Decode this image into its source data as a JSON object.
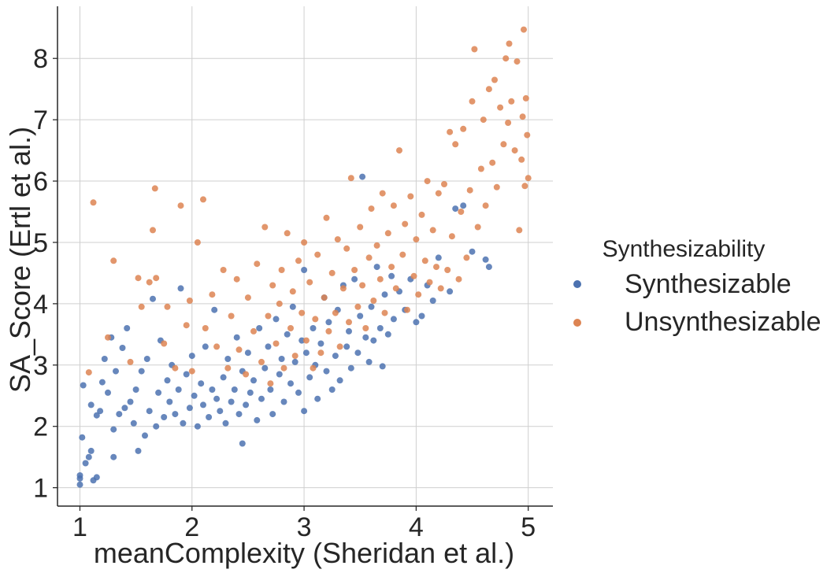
{
  "chart_data": {
    "type": "scatter",
    "xlabel": "meanComplexity (Sheridan et al.)",
    "ylabel": "SA_Score (Ertl et al.)",
    "xlim": [
      0.8,
      5.22
    ],
    "ylim": [
      0.7,
      8.85
    ],
    "xticks": [
      "1",
      "2",
      "3",
      "4",
      "5"
    ],
    "yticks": [
      "1",
      "2",
      "3",
      "4",
      "5",
      "6",
      "7",
      "8"
    ],
    "grid": true,
    "legend": {
      "title": "Synthesizability",
      "placement": "right-outside"
    },
    "series": [
      {
        "name": "Synthesizable",
        "color": "#4c72b0",
        "points": [
          [
            1.0,
            1.05
          ],
          [
            1.0,
            1.15
          ],
          [
            1.0,
            1.2
          ],
          [
            1.02,
            1.82
          ],
          [
            1.03,
            2.67
          ],
          [
            1.05,
            1.4
          ],
          [
            1.08,
            1.5
          ],
          [
            1.1,
            1.6
          ],
          [
            1.1,
            2.35
          ],
          [
            1.12,
            1.12
          ],
          [
            1.15,
            1.17
          ],
          [
            1.15,
            2.18
          ],
          [
            1.18,
            2.25
          ],
          [
            1.2,
            2.72
          ],
          [
            1.22,
            3.1
          ],
          [
            1.25,
            2.55
          ],
          [
            1.28,
            3.45
          ],
          [
            1.3,
            1.5
          ],
          [
            1.3,
            1.95
          ],
          [
            1.32,
            2.9
          ],
          [
            1.35,
            2.2
          ],
          [
            1.38,
            3.28
          ],
          [
            1.4,
            2.3
          ],
          [
            1.42,
            3.6
          ],
          [
            1.45,
            2.4
          ],
          [
            1.48,
            2.05
          ],
          [
            1.5,
            2.6
          ],
          [
            1.52,
            1.6
          ],
          [
            1.55,
            2.9
          ],
          [
            1.58,
            1.85
          ],
          [
            1.6,
            3.1
          ],
          [
            1.62,
            2.25
          ],
          [
            1.65,
            4.08
          ],
          [
            1.68,
            2.0
          ],
          [
            1.7,
            2.55
          ],
          [
            1.72,
            3.4
          ],
          [
            1.75,
            2.15
          ],
          [
            1.78,
            2.75
          ],
          [
            1.8,
            2.4
          ],
          [
            1.82,
            3.0
          ],
          [
            1.85,
            2.2
          ],
          [
            1.88,
            2.6
          ],
          [
            1.9,
            4.25
          ],
          [
            1.92,
            2.05
          ],
          [
            1.95,
            2.85
          ],
          [
            1.98,
            2.3
          ],
          [
            2.0,
            3.15
          ],
          [
            2.02,
            2.5
          ],
          [
            2.05,
            2.0
          ],
          [
            2.08,
            2.7
          ],
          [
            2.1,
            2.35
          ],
          [
            2.12,
            3.3
          ],
          [
            2.15,
            2.15
          ],
          [
            2.18,
            2.6
          ],
          [
            2.2,
            3.9
          ],
          [
            2.22,
            2.45
          ],
          [
            2.25,
            2.25
          ],
          [
            2.28,
            2.8
          ],
          [
            2.3,
            2.05
          ],
          [
            2.32,
            3.1
          ],
          [
            2.35,
            2.4
          ],
          [
            2.38,
            2.6
          ],
          [
            2.4,
            3.45
          ],
          [
            2.42,
            2.2
          ],
          [
            2.45,
            1.72
          ],
          [
            2.45,
            2.9
          ],
          [
            2.48,
            2.35
          ],
          [
            2.5,
            3.2
          ],
          [
            2.52,
            2.55
          ],
          [
            2.55,
            2.75
          ],
          [
            2.58,
            2.1
          ],
          [
            2.6,
            3.6
          ],
          [
            2.62,
            2.45
          ],
          [
            2.65,
            2.95
          ],
          [
            2.68,
            3.3
          ],
          [
            2.7,
            2.6
          ],
          [
            2.72,
            2.2
          ],
          [
            2.75,
            3.75
          ],
          [
            2.78,
            2.85
          ],
          [
            2.8,
            3.1
          ],
          [
            2.82,
            2.4
          ],
          [
            2.85,
            3.5
          ],
          [
            2.88,
            2.7
          ],
          [
            2.9,
            3.95
          ],
          [
            2.92,
            3.05
          ],
          [
            2.95,
            2.55
          ],
          [
            2.98,
            3.4
          ],
          [
            3.0,
            4.55
          ],
          [
            3.0,
            2.25
          ],
          [
            3.02,
            3.2
          ],
          [
            3.05,
            2.8
          ],
          [
            3.08,
            3.6
          ],
          [
            3.1,
            3.0
          ],
          [
            3.12,
            2.45
          ],
          [
            3.15,
            3.35
          ],
          [
            3.18,
            4.1
          ],
          [
            3.2,
            2.9
          ],
          [
            3.22,
            3.7
          ],
          [
            3.25,
            2.6
          ],
          [
            3.28,
            3.15
          ],
          [
            3.3,
            3.9
          ],
          [
            3.32,
            2.75
          ],
          [
            3.35,
            4.3
          ],
          [
            3.38,
            3.3
          ],
          [
            3.4,
            3.55
          ],
          [
            3.42,
            2.95
          ],
          [
            3.45,
            4.4
          ],
          [
            3.48,
            3.2
          ],
          [
            3.5,
            3.8
          ],
          [
            3.52,
            6.07
          ],
          [
            3.55,
            3.45
          ],
          [
            3.58,
            3.05
          ],
          [
            3.6,
            3.95
          ],
          [
            3.62,
            3.4
          ],
          [
            3.65,
            4.6
          ],
          [
            3.68,
            3.6
          ],
          [
            3.7,
            2.98
          ],
          [
            3.72,
            4.15
          ],
          [
            3.75,
            3.5
          ],
          [
            3.78,
            4.45
          ],
          [
            3.8,
            3.75
          ],
          [
            3.85,
            4.2
          ],
          [
            3.9,
            3.9
          ],
          [
            3.95,
            4.4
          ],
          [
            4.0,
            3.7
          ],
          [
            4.05,
            3.8
          ],
          [
            4.1,
            4.3
          ],
          [
            4.15,
            4.05
          ],
          [
            4.2,
            4.75
          ],
          [
            4.3,
            4.2
          ],
          [
            4.35,
            5.55
          ],
          [
            4.42,
            5.6
          ],
          [
            4.5,
            4.85
          ],
          [
            4.62,
            4.72
          ],
          [
            4.65,
            4.6
          ]
        ]
      },
      {
        "name": "Unsynthesizable",
        "color": "#dd8452",
        "points": [
          [
            1.08,
            2.88
          ],
          [
            1.12,
            5.65
          ],
          [
            1.25,
            3.45
          ],
          [
            1.3,
            4.7
          ],
          [
            1.45,
            3.05
          ],
          [
            1.52,
            4.42
          ],
          [
            1.55,
            3.95
          ],
          [
            1.62,
            4.35
          ],
          [
            1.65,
            5.2
          ],
          [
            1.67,
            5.88
          ],
          [
            1.68,
            4.42
          ],
          [
            1.75,
            3.35
          ],
          [
            1.78,
            3.95
          ],
          [
            1.85,
            2.95
          ],
          [
            1.9,
            5.6
          ],
          [
            1.95,
            3.65
          ],
          [
            1.98,
            4.05
          ],
          [
            2.0,
            2.9
          ],
          [
            2.05,
            5.0
          ],
          [
            2.1,
            5.7
          ],
          [
            2.12,
            3.6
          ],
          [
            2.18,
            4.15
          ],
          [
            2.22,
            3.3
          ],
          [
            2.28,
            4.55
          ],
          [
            2.32,
            2.95
          ],
          [
            2.35,
            3.8
          ],
          [
            2.4,
            4.4
          ],
          [
            2.42,
            3.25
          ],
          [
            2.48,
            2.85
          ],
          [
            2.5,
            4.1
          ],
          [
            2.55,
            3.55
          ],
          [
            2.58,
            4.65
          ],
          [
            2.62,
            3.05
          ],
          [
            2.65,
            5.25
          ],
          [
            2.68,
            3.8
          ],
          [
            2.7,
            2.7
          ],
          [
            2.72,
            4.3
          ],
          [
            2.75,
            3.35
          ],
          [
            2.78,
            4.0
          ],
          [
            2.8,
            4.55
          ],
          [
            2.82,
            2.95
          ],
          [
            2.85,
            5.15
          ],
          [
            2.88,
            3.6
          ],
          [
            2.9,
            4.2
          ],
          [
            2.92,
            3.15
          ],
          [
            2.95,
            4.7
          ],
          [
            2.98,
            3.85
          ],
          [
            3.0,
            5.0
          ],
          [
            3.02,
            3.4
          ],
          [
            3.05,
            4.35
          ],
          [
            3.08,
            2.95
          ],
          [
            3.1,
            3.75
          ],
          [
            3.12,
            4.8
          ],
          [
            3.15,
            3.2
          ],
          [
            3.18,
            4.1
          ],
          [
            3.2,
            5.4
          ],
          [
            3.22,
            3.55
          ],
          [
            3.25,
            4.5
          ],
          [
            3.28,
            3.85
          ],
          [
            3.3,
            5.05
          ],
          [
            3.32,
            3.3
          ],
          [
            3.35,
            4.25
          ],
          [
            3.38,
            4.9
          ],
          [
            3.4,
            3.7
          ],
          [
            3.42,
            6.05
          ],
          [
            3.45,
            4.55
          ],
          [
            3.48,
            3.95
          ],
          [
            3.5,
            5.25
          ],
          [
            3.52,
            4.3
          ],
          [
            3.55,
            3.6
          ],
          [
            3.58,
            4.75
          ],
          [
            3.6,
            5.55
          ],
          [
            3.62,
            4.05
          ],
          [
            3.65,
            4.95
          ],
          [
            3.68,
            4.4
          ],
          [
            3.7,
            5.8
          ],
          [
            3.72,
            3.85
          ],
          [
            3.75,
            5.15
          ],
          [
            3.78,
            4.6
          ],
          [
            3.8,
            5.6
          ],
          [
            3.82,
            4.25
          ],
          [
            3.85,
            6.5
          ],
          [
            3.88,
            4.8
          ],
          [
            3.9,
            5.3
          ],
          [
            3.92,
            3.9
          ],
          [
            3.95,
            5.75
          ],
          [
            3.98,
            4.45
          ],
          [
            4.0,
            5.05
          ],
          [
            4.02,
            4.15
          ],
          [
            4.05,
            5.45
          ],
          [
            4.08,
            4.7
          ],
          [
            4.1,
            6.0
          ],
          [
            4.12,
            4.35
          ],
          [
            4.15,
            5.2
          ],
          [
            4.18,
            4.6
          ],
          [
            4.2,
            5.8
          ],
          [
            4.22,
            4.25
          ],
          [
            4.25,
            5.95
          ],
          [
            4.28,
            4.55
          ],
          [
            4.3,
            6.8
          ],
          [
            4.32,
            5.1
          ],
          [
            4.35,
            6.6
          ],
          [
            4.38,
            4.4
          ],
          [
            4.4,
            5.5
          ],
          [
            4.42,
            6.85
          ],
          [
            4.45,
            4.75
          ],
          [
            4.48,
            5.85
          ],
          [
            4.5,
            7.3
          ],
          [
            4.52,
            8.15
          ],
          [
            4.55,
            5.25
          ],
          [
            4.58,
            6.2
          ],
          [
            4.6,
            7.0
          ],
          [
            4.62,
            5.6
          ],
          [
            4.65,
            7.5
          ],
          [
            4.68,
            6.3
          ],
          [
            4.7,
            7.65
          ],
          [
            4.72,
            5.9
          ],
          [
            4.75,
            7.2
          ],
          [
            4.78,
            6.6
          ],
          [
            4.8,
            8.0
          ],
          [
            4.82,
            6.95
          ],
          [
            4.83,
            8.24
          ],
          [
            4.85,
            7.3
          ],
          [
            4.88,
            6.5
          ],
          [
            4.9,
            7.95
          ],
          [
            4.92,
            5.2
          ],
          [
            4.94,
            6.35
          ],
          [
            4.95,
            7.05
          ],
          [
            4.96,
            8.47
          ],
          [
            4.97,
            5.92
          ],
          [
            4.98,
            7.35
          ],
          [
            4.99,
            6.75
          ],
          [
            5.0,
            6.05
          ]
        ]
      }
    ]
  }
}
